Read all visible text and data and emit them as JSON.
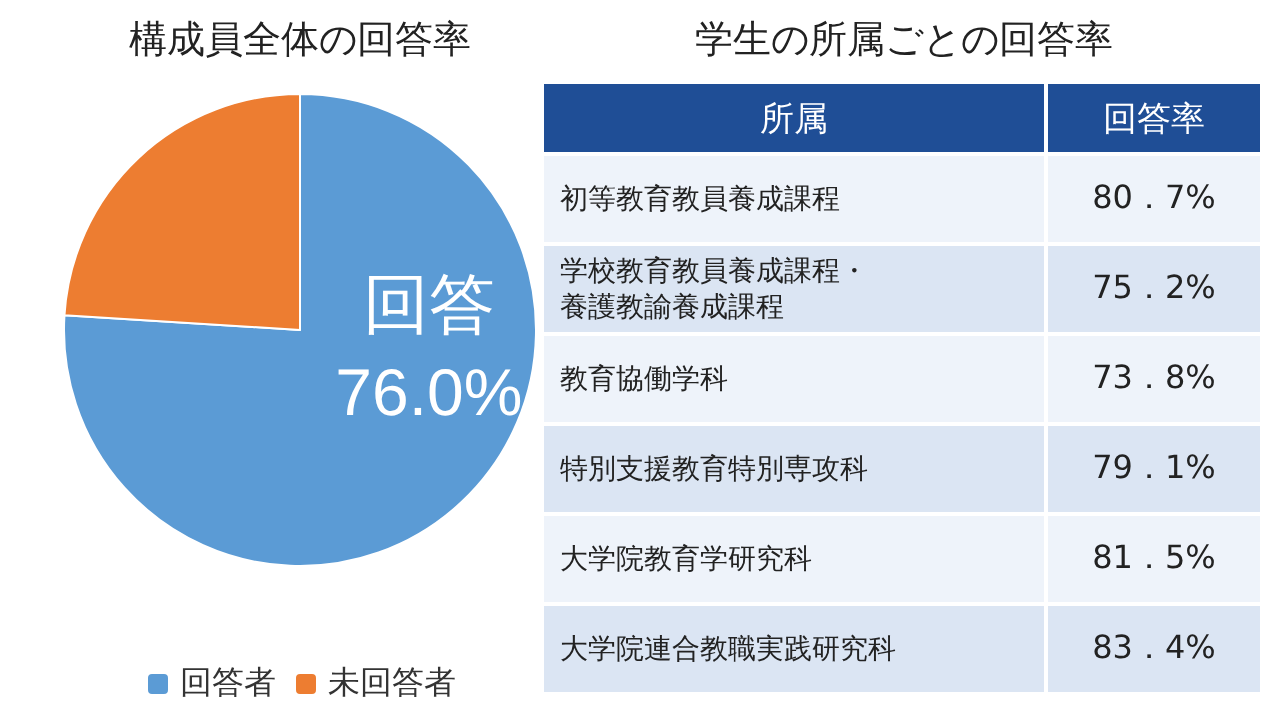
{
  "chart_data": [
    {
      "type": "pie",
      "title": "構成員全体の回答率",
      "categories": [
        "回答者",
        "未回答者"
      ],
      "values": [
        76.0,
        24.0
      ],
      "colors": [
        "#5b9bd5",
        "#ed7d31"
      ],
      "value_labels": [
        "回答\n76.0%",
        null
      ],
      "legend": "bottom"
    },
    {
      "type": "other",
      "title": "学生の所属ごとの回答率",
      "xlabel": "所属",
      "ylabel": "回答率",
      "categories": [
        "初等教育教員養成課程",
        "学校教育教員養成課程・養護教諭養成課程",
        "教育協働学科",
        "特別支援教育特別専攻科",
        "大学院教育学研究科",
        "大学院連合教職実践研究科"
      ],
      "value_labels": [
        "80．7%",
        "75．2%",
        "73．8%",
        "79．1%",
        "81．5%",
        "83．4%"
      ]
    }
  ]
}
